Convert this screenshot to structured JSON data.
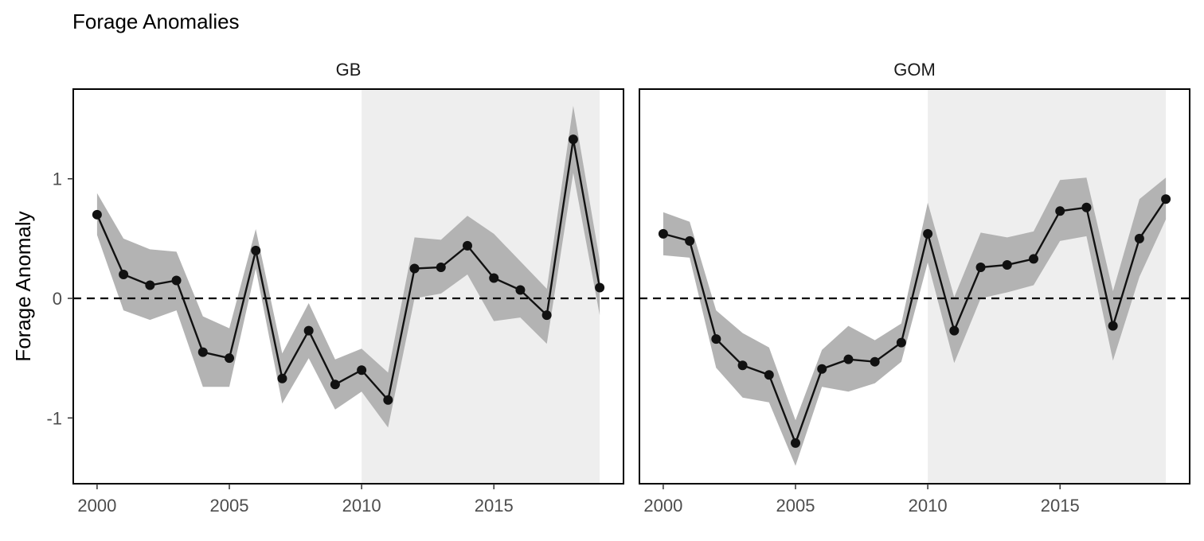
{
  "title": "Forage Anomalies",
  "chart_data": {
    "type": "line",
    "title": "Forage Anomalies",
    "ylabel": "Forage Anomaly",
    "xlabel": "",
    "x": [
      2000,
      2001,
      2002,
      2003,
      2004,
      2005,
      2006,
      2007,
      2008,
      2009,
      2010,
      2011,
      2012,
      2013,
      2014,
      2015,
      2016,
      2017,
      2018,
      2019
    ],
    "xlim": [
      1999.1,
      2019.9
    ],
    "ylim": [
      -1.55,
      1.75
    ],
    "x_ticks": [
      2000,
      2005,
      2010,
      2015
    ],
    "x_tick_labels": [
      "2000",
      "2005",
      "2010",
      "2015"
    ],
    "y_ticks": [
      -1,
      0,
      1
    ],
    "y_tick_labels": [
      "-1",
      "0",
      "1"
    ],
    "reference_line": {
      "y": 0,
      "style": "dashed"
    },
    "highlight_range": [
      2010,
      2019
    ],
    "grid": false,
    "colors": {
      "line": "#111111",
      "point": "#111111",
      "band": "#b3b3b3",
      "highlight": "#eeeeee",
      "reference": "#000000"
    },
    "panels": [
      {
        "name": "GB",
        "series": [
          {
            "values": [
              0.7,
              0.2,
              0.11,
              0.15,
              -0.45,
              -0.5,
              0.4,
              -0.67,
              -0.27,
              -0.72,
              -0.6,
              -0.85,
              0.25,
              0.26,
              0.44,
              0.17,
              0.07,
              -0.14,
              1.33,
              0.09
            ],
            "lower": [
              0.53,
              -0.1,
              -0.18,
              -0.1,
              -0.74,
              -0.74,
              0.25,
              -0.88,
              -0.5,
              -0.93,
              -0.78,
              -1.08,
              0.0,
              0.04,
              0.2,
              -0.19,
              -0.16,
              -0.38,
              1.05,
              -0.14
            ],
            "upper": [
              0.88,
              0.5,
              0.41,
              0.39,
              -0.15,
              -0.25,
              0.58,
              -0.46,
              -0.04,
              -0.51,
              -0.42,
              -0.62,
              0.51,
              0.49,
              0.69,
              0.54,
              0.31,
              0.08,
              1.61,
              0.32
            ]
          }
        ]
      },
      {
        "name": "GOM",
        "series": [
          {
            "values": [
              0.54,
              0.48,
              -0.34,
              -0.56,
              -0.64,
              -1.21,
              -0.59,
              -0.51,
              -0.53,
              -0.37,
              0.54,
              -0.27,
              0.26,
              0.28,
              0.33,
              0.73,
              0.76,
              -0.23,
              0.5,
              0.83
            ],
            "lower": [
              0.36,
              0.34,
              -0.58,
              -0.83,
              -0.87,
              -1.4,
              -0.74,
              -0.78,
              -0.71,
              -0.53,
              0.3,
              -0.54,
              0.0,
              0.05,
              0.11,
              0.48,
              0.52,
              -0.52,
              0.18,
              0.66
            ],
            "upper": [
              0.72,
              0.64,
              -0.1,
              -0.29,
              -0.41,
              -1.02,
              -0.43,
              -0.23,
              -0.35,
              -0.21,
              0.8,
              0.01,
              0.55,
              0.51,
              0.56,
              0.99,
              1.01,
              0.06,
              0.83,
              1.01
            ]
          }
        ]
      }
    ]
  }
}
